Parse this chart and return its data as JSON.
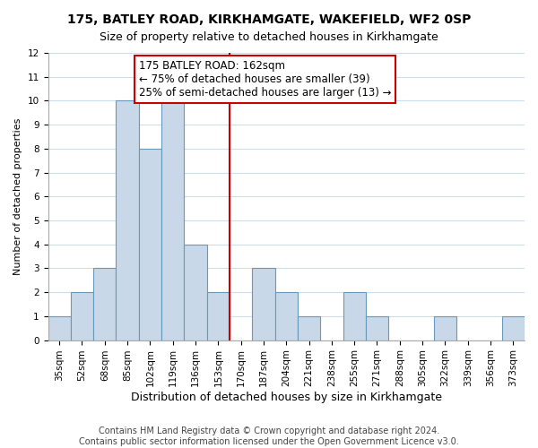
{
  "title": "175, BATLEY ROAD, KIRKHAMGATE, WAKEFIELD, WF2 0SP",
  "subtitle": "Size of property relative to detached houses in Kirkhamgate",
  "xlabel": "Distribution of detached houses by size in Kirkhamgate",
  "ylabel": "Number of detached properties",
  "bin_labels": [
    "35sqm",
    "52sqm",
    "68sqm",
    "85sqm",
    "102sqm",
    "119sqm",
    "136sqm",
    "153sqm",
    "170sqm",
    "187sqm",
    "204sqm",
    "221sqm",
    "238sqm",
    "255sqm",
    "271sqm",
    "288sqm",
    "305sqm",
    "322sqm",
    "339sqm",
    "356sqm",
    "373sqm"
  ],
  "bar_heights": [
    1,
    2,
    3,
    10,
    8,
    10,
    4,
    2,
    0,
    3,
    2,
    1,
    0,
    2,
    1,
    0,
    0,
    1,
    0,
    0,
    1
  ],
  "bar_color": "#c8d8e8",
  "bar_edgecolor": "#6699bb",
  "vline_bin": 8,
  "vline_color": "#cc0000",
  "annotation_text": "175 BATLEY ROAD: 162sqm\n← 75% of detached houses are smaller (39)\n25% of semi-detached houses are larger (13) →",
  "annotation_box_edgecolor": "#cc0000",
  "annotation_box_facecolor": "#ffffff",
  "ylim": [
    0,
    12
  ],
  "yticks": [
    0,
    1,
    2,
    3,
    4,
    5,
    6,
    7,
    8,
    9,
    10,
    11,
    12
  ],
  "grid_color": "#ccddee",
  "background_color": "#ffffff",
  "footer_text": "Contains HM Land Registry data © Crown copyright and database right 2024.\nContains public sector information licensed under the Open Government Licence v3.0.",
  "title_fontsize": 10,
  "subtitle_fontsize": 9,
  "xlabel_fontsize": 9,
  "ylabel_fontsize": 8,
  "tick_fontsize": 7.5,
  "annotation_fontsize": 8.5,
  "footer_fontsize": 7
}
